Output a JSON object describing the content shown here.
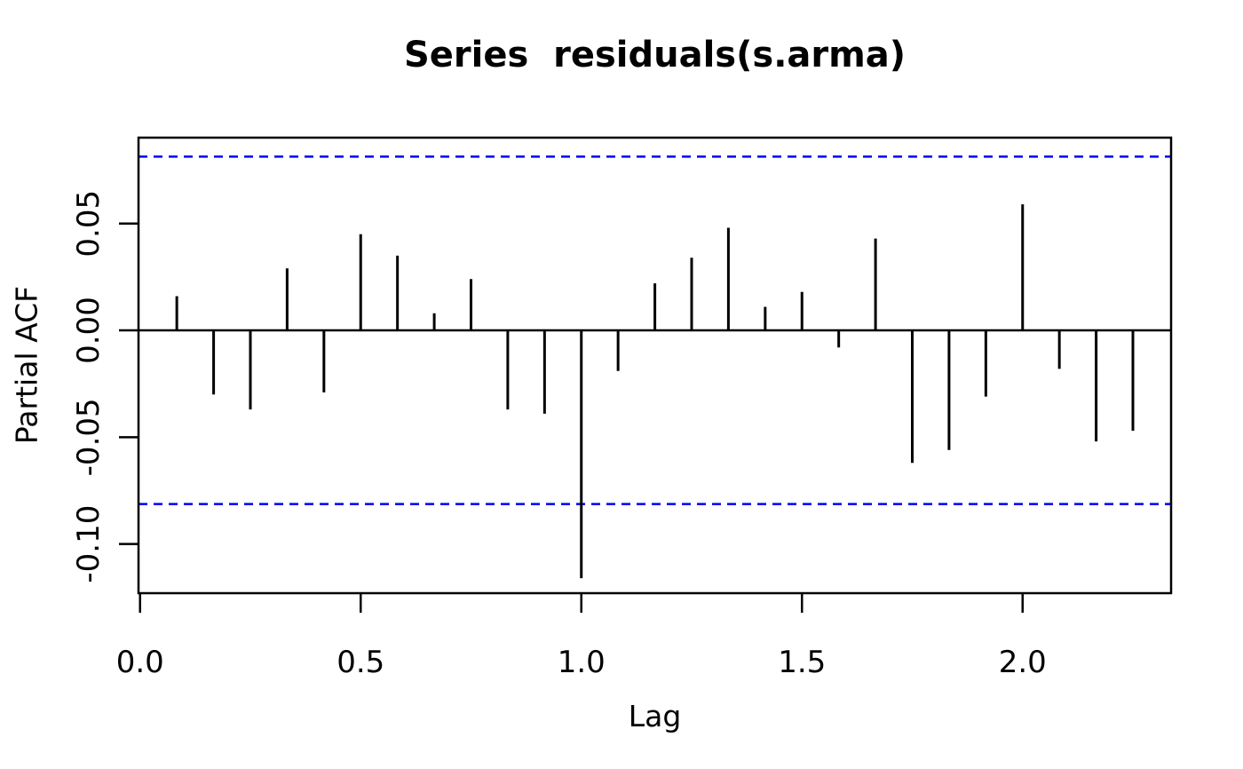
{
  "figure": {
    "title": "Series  residuals(s.arma)",
    "xlabel": "Lag",
    "ylabel": "Partial ACF"
  },
  "chart_data": {
    "type": "bar",
    "variant": "stem-pacf",
    "title": "Series  residuals(s.arma)",
    "xlabel": "Lag",
    "ylabel": "Partial ACF",
    "x": [
      0.0833,
      0.1667,
      0.25,
      0.3333,
      0.4167,
      0.5,
      0.5833,
      0.6667,
      0.75,
      0.8333,
      0.9167,
      1.0,
      1.0833,
      1.1667,
      1.25,
      1.3333,
      1.4167,
      1.5,
      1.5833,
      1.6667,
      1.75,
      1.8333,
      1.9167,
      2.0,
      2.0833,
      2.1667,
      2.25
    ],
    "values": [
      0.016,
      -0.03,
      -0.037,
      0.029,
      -0.029,
      0.045,
      0.035,
      0.008,
      0.024,
      -0.037,
      -0.039,
      -0.116,
      -0.019,
      0.022,
      0.034,
      0.048,
      0.011,
      0.018,
      -0.008,
      0.043,
      -0.062,
      -0.056,
      -0.031,
      0.059,
      -0.018,
      -0.052,
      -0.047
    ],
    "confidence_interval": 0.0813,
    "confidence_line_style": "dashed",
    "confidence_line_color": "#0000FF",
    "bar_color": "#000000",
    "zero_line": 0.0,
    "grid": false,
    "legend": null,
    "xlim": [
      -0.0035,
      2.3365
    ],
    "ylim": [
      -0.123,
      0.0902
    ],
    "x_ticks": [
      {
        "value": 0.0,
        "label": "0.0"
      },
      {
        "value": 0.5,
        "label": "0.5"
      },
      {
        "value": 1.0,
        "label": "1.0"
      },
      {
        "value": 1.5,
        "label": "1.5"
      },
      {
        "value": 2.0,
        "label": "2.0"
      }
    ],
    "y_ticks": [
      {
        "value": 0.05,
        "label": "0.05"
      },
      {
        "value": 0.0,
        "label": "0.00"
      },
      {
        "value": -0.05,
        "label": "-0.05"
      },
      {
        "value": -0.1,
        "label": "-0.10"
      }
    ]
  }
}
